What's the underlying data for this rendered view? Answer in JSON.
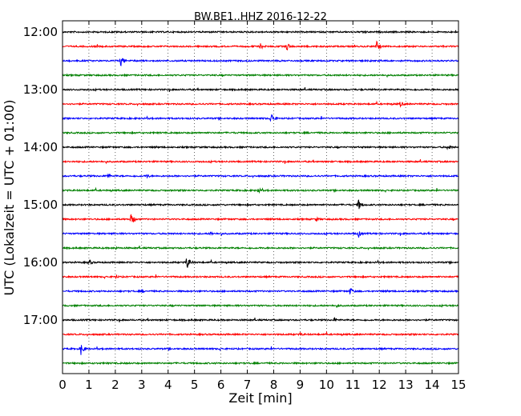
{
  "chart_data": {
    "type": "line",
    "title": "BW.BE1..HHZ 2016-12-22",
    "xlabel": "Zeit  [min]",
    "ylabel": "UTC (Lokalzeit = UTC + 01:00)",
    "xlim": [
      0,
      15
    ],
    "xticks": [
      "0",
      "1",
      "2",
      "3",
      "4",
      "5",
      "6",
      "7",
      "8",
      "9",
      "10",
      "11",
      "12",
      "13",
      "14",
      "15"
    ],
    "yticks": [
      "12:00",
      "13:00",
      "14:00",
      "15:00",
      "16:00",
      "17:00"
    ],
    "grid": "vertical-dotted",
    "trace_colors": [
      "#000000",
      "#ff0000",
      "#0000ff",
      "#008000"
    ],
    "series": [
      {
        "start": "12:00",
        "events": [
          {
            "t": 11.4,
            "a": 3
          }
        ]
      },
      {
        "start": "12:15",
        "events": [
          {
            "t": 7.5,
            "a": 4
          },
          {
            "t": 8.5,
            "a": 6
          },
          {
            "t": 11.9,
            "a": 7
          }
        ]
      },
      {
        "start": "12:30",
        "events": [
          {
            "t": 2.2,
            "a": 7
          }
        ]
      },
      {
        "start": "12:45",
        "events": []
      },
      {
        "start": "13:00",
        "events": []
      },
      {
        "start": "13:15",
        "events": [
          {
            "t": 12.8,
            "a": 4
          }
        ]
      },
      {
        "start": "13:30",
        "events": [
          {
            "t": 7.9,
            "a": 8
          }
        ]
      },
      {
        "start": "13:45",
        "events": []
      },
      {
        "start": "14:00",
        "events": [
          {
            "t": 14.6,
            "a": 5
          }
        ]
      },
      {
        "start": "14:15",
        "events": []
      },
      {
        "start": "14:30",
        "events": [
          {
            "t": 1.7,
            "a": 4
          },
          {
            "t": 3.2,
            "a": 3
          }
        ]
      },
      {
        "start": "14:45",
        "events": [
          {
            "t": 7.4,
            "a": 4
          }
        ]
      },
      {
        "start": "15:00",
        "events": [
          {
            "t": 11.2,
            "a": 8
          }
        ]
      },
      {
        "start": "15:15",
        "events": [
          {
            "t": 2.6,
            "a": 8
          },
          {
            "t": 9.6,
            "a": 3
          }
        ]
      },
      {
        "start": "15:30",
        "events": [
          {
            "t": 11.2,
            "a": 6
          },
          {
            "t": 5.6,
            "a": 3
          }
        ]
      },
      {
        "start": "15:45",
        "events": [
          {
            "t": 2.0,
            "a": 3
          }
        ]
      },
      {
        "start": "16:00",
        "events": [
          {
            "t": 1.0,
            "a": 4
          },
          {
            "t": 4.7,
            "a": 9
          }
        ]
      },
      {
        "start": "16:15",
        "events": [
          {
            "t": 2.0,
            "a": 3
          }
        ]
      },
      {
        "start": "16:30",
        "events": [
          {
            "t": 10.9,
            "a": 5
          },
          {
            "t": 3.0,
            "a": 3
          }
        ]
      },
      {
        "start": "16:45",
        "events": [
          {
            "t": 10.4,
            "a": 3
          }
        ]
      },
      {
        "start": "17:00",
        "events": [
          {
            "t": 10.3,
            "a": 4
          }
        ]
      },
      {
        "start": "17:15",
        "events": [
          {
            "t": 9.0,
            "a": 3
          }
        ]
      },
      {
        "start": "17:30",
        "events": [
          {
            "t": 0.7,
            "a": 8
          }
        ]
      },
      {
        "start": "17:45",
        "events": []
      }
    ]
  }
}
